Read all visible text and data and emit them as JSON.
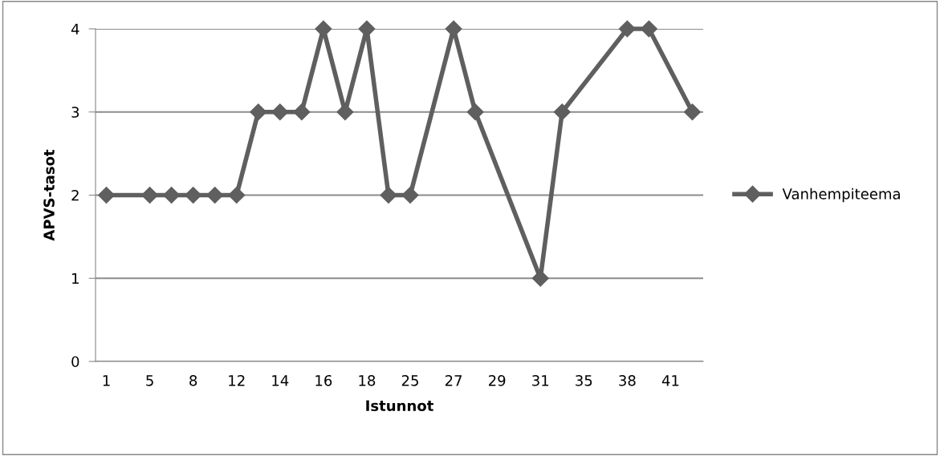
{
  "chart_data": {
    "type": "line",
    "xlabel": "Istunnot",
    "ylabel": "APVS-tasot",
    "categories": [
      "1",
      null,
      "5",
      null,
      "8",
      null,
      "12",
      null,
      "14",
      null,
      "16",
      null,
      "18",
      null,
      "25",
      null,
      "27",
      null,
      "29",
      null,
      "31",
      null,
      "35",
      null,
      "38",
      null,
      "41",
      null
    ],
    "series": [
      {
        "name": "Vanhempiteema",
        "color": "#5f5f5f",
        "values": [
          2,
          null,
          2,
          2,
          2,
          2,
          2,
          3,
          3,
          3,
          4,
          3,
          4,
          2,
          2,
          null,
          4,
          3,
          null,
          null,
          1,
          3,
          null,
          null,
          4,
          4,
          null,
          3
        ]
      }
    ],
    "ylim": [
      0,
      4
    ],
    "yticks": [
      0,
      1,
      2,
      3,
      4
    ],
    "grid": "y",
    "legend": "right",
    "marker": "diamond",
    "line_style": "solid"
  }
}
